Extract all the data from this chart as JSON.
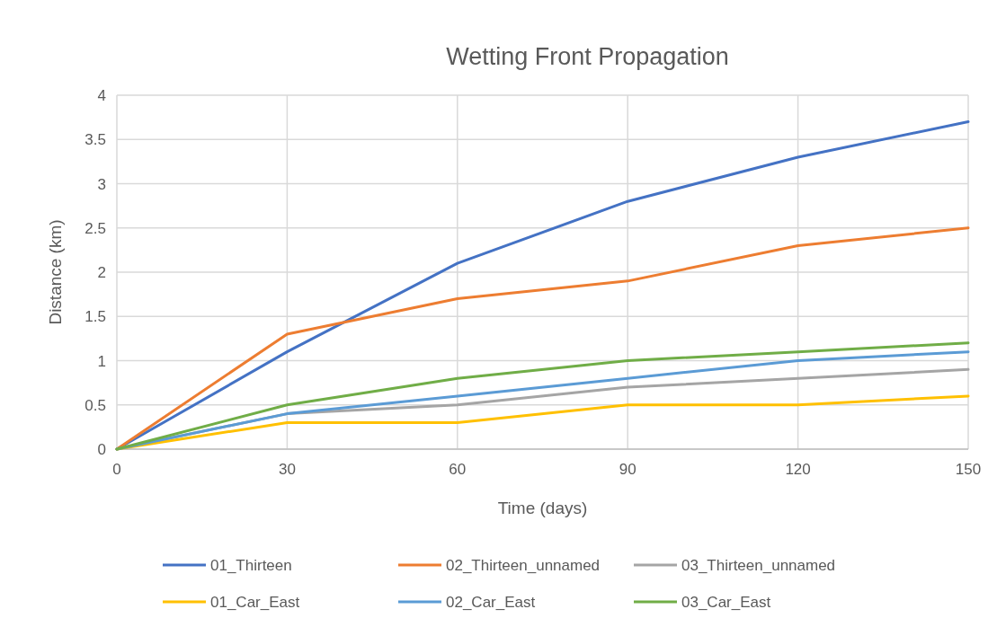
{
  "chart_data": {
    "type": "line",
    "title": "Wetting Front Propagation",
    "xlabel": "Time (days)",
    "ylabel": "Distance (km)",
    "x": [
      0,
      30,
      60,
      90,
      120,
      150
    ],
    "xlim": [
      0,
      150
    ],
    "xticks": [
      0,
      30,
      60,
      90,
      120,
      150
    ],
    "ylim": [
      0,
      4
    ],
    "yticks": [
      0,
      0.5,
      1,
      1.5,
      2,
      2.5,
      3,
      3.5,
      4
    ],
    "grid": true,
    "legend": "bottom",
    "marker": "none",
    "series": [
      {
        "name": "01_Thirteen",
        "color": "#4472c4",
        "values": [
          0,
          1.1,
          2.1,
          2.8,
          3.3,
          3.7
        ]
      },
      {
        "name": "02_Thirteen_unnamed",
        "color": "#ed7d31",
        "values": [
          0,
          1.3,
          1.7,
          1.9,
          2.3,
          2.5
        ]
      },
      {
        "name": "03_Thirteen_unnamed",
        "color": "#a5a5a5",
        "values": [
          0,
          0.4,
          0.5,
          0.7,
          0.8,
          0.9
        ]
      },
      {
        "name": "01_Car_East",
        "color": "#ffc000",
        "values": [
          0,
          0.3,
          0.3,
          0.5,
          0.5,
          0.6
        ]
      },
      {
        "name": "02_Car_East",
        "color": "#5b9bd5",
        "values": [
          0,
          0.4,
          0.6,
          0.8,
          1.0,
          1.1
        ]
      },
      {
        "name": "03_Car_East",
        "color": "#70ad47",
        "values": [
          0,
          0.5,
          0.8,
          1.0,
          1.1,
          1.2
        ]
      }
    ]
  }
}
